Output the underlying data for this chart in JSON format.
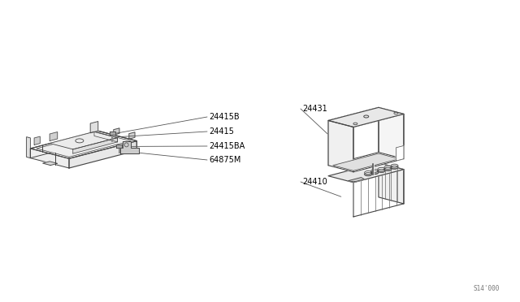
{
  "bg_color": "#ffffff",
  "line_color": "#444444",
  "label_color": "#000000",
  "diagram_number": "S14'000",
  "parts": [
    {
      "id": "24410",
      "label": "24410"
    },
    {
      "id": "24415",
      "label": "24415"
    },
    {
      "id": "24415B",
      "label": "24415B"
    },
    {
      "id": "24415BA",
      "label": "24415BA"
    },
    {
      "id": "24431",
      "label": "24431"
    },
    {
      "id": "64875M",
      "label": "64875M"
    }
  ],
  "figsize": [
    6.4,
    3.72
  ],
  "dpi": 100
}
